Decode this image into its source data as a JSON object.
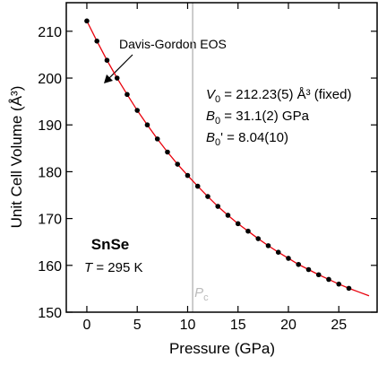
{
  "chart_data": {
    "type": "scatter",
    "x_label": "Pressure (GPa)",
    "y_label": "Unit Cell Volume (Å³)",
    "xlim": [
      -2.04,
      28.8
    ],
    "ylim": [
      150,
      216.1
    ],
    "xticks": [
      0,
      5,
      10,
      15,
      20,
      25
    ],
    "yticks": [
      150,
      160,
      170,
      180,
      190,
      200,
      210
    ],
    "series": [
      {
        "color": "#000000",
        "x": [
          0,
          1,
          2,
          3,
          4,
          5,
          6,
          7,
          8,
          9,
          10,
          11,
          12,
          13,
          14,
          15,
          16,
          17,
          18,
          19,
          20,
          21,
          22,
          23,
          24,
          25,
          26
        ],
        "values": [
          212.2,
          207.9,
          203.8,
          200.0,
          196.5,
          193.1,
          190.0,
          187.0,
          184.2,
          181.6,
          179.2,
          176.9,
          174.7,
          172.6,
          170.7,
          168.9,
          167.3,
          165.7,
          164.2,
          162.8,
          161.5,
          160.2,
          159.1,
          158.0,
          157.0,
          156.0,
          155.1
        ]
      },
      {
        "color": "#e8000b",
        "x": [
          0,
          1,
          2,
          3,
          4,
          5,
          6,
          7,
          8,
          9,
          10,
          11,
          12,
          13,
          14,
          15,
          16,
          17,
          18,
          19,
          20,
          21,
          22,
          23,
          24,
          25,
          26,
          27,
          28
        ],
        "values": [
          212.2,
          207.9,
          203.8,
          200.0,
          196.5,
          193.1,
          190.0,
          187.0,
          184.2,
          181.6,
          179.2,
          176.9,
          174.7,
          172.6,
          170.7,
          168.9,
          167.3,
          165.7,
          164.2,
          162.8,
          161.5,
          160.2,
          159.1,
          158.0,
          157.0,
          156.0,
          155.1,
          154.3,
          153.5
        ]
      }
    ],
    "fit_label": "Davis-Gordon EOS",
    "parameters": [
      {
        "symbol": "V",
        "sub": "0",
        "text": " = 212.23(5) Å³ (fixed)"
      },
      {
        "symbol": "B",
        "sub": "0",
        "text": " = 31.1(2) GPa"
      },
      {
        "symbol": "B",
        "sub": "0",
        "text": "' = 8.04(10)"
      }
    ],
    "sample": "SnSe",
    "temperature": {
      "symbol": "T",
      "text": " = 295 K"
    },
    "transition": {
      "value": 10.5,
      "symbol": "P",
      "sub": "c",
      "color": "#bbbbbb"
    }
  }
}
